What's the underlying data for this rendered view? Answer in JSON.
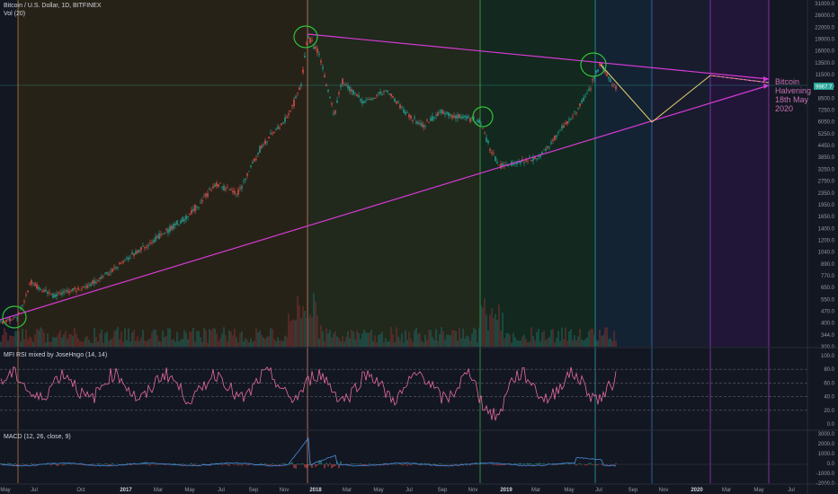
{
  "header": {
    "symbol_title": "Bitcoin / U.S. Dollar, 1D, BITFINEX",
    "volume_title": "Vol (20)"
  },
  "rsi_pane": {
    "title": "MFI RSI mixed by JoseHngo (14, 14)"
  },
  "macd_pane": {
    "title": "MACD (12, 26, close, 9)"
  },
  "annotation": {
    "line1": "Bitcoin",
    "line2": "Halvening",
    "line3": "18th May",
    "line4": "2020"
  },
  "price_label": "9967.7",
  "colors": {
    "background": "#131722",
    "trendline": "#d63ad6",
    "projection": "#e8d26a",
    "circle": "#2ec43a",
    "candle_up": "#26a69a",
    "candle_down": "#ef5350",
    "rsi_line": "#e86ba0",
    "annotation_text": "#c76fb3"
  },
  "price_axis_labels": [
    "31000.0",
    "26000.0",
    "22000.0",
    "19000.0",
    "16000.0",
    "13500.0",
    "11500.0",
    "9800.0",
    "8500.0",
    "7250.0",
    "6050.0",
    "5250.0",
    "4450.0",
    "3850.0",
    "3250.0",
    "2750.0",
    "2350.0",
    "1950.0",
    "1650.0",
    "1400.0",
    "1200.0",
    "1040.0",
    "890.0",
    "770.0",
    "650.0",
    "550.0",
    "470.0",
    "400.0",
    "344.0",
    "300.0"
  ],
  "rsi_axis_labels": [
    "100.0",
    "80.0",
    "60.0",
    "40.0",
    "20.0",
    "0.0"
  ],
  "macd_axis_labels": [
    "3000.0",
    "2000.0",
    "1000.0",
    "0.0",
    "-1000.0",
    "-2000.0"
  ],
  "time_axis_labels": [
    "May",
    "Jul",
    "Oct",
    "2017",
    "Mar",
    "May",
    "Jul",
    "Sep",
    "Nov",
    "2018",
    "Mar",
    "May",
    "Jul",
    "Sep",
    "Nov",
    "2019",
    "Mar",
    "May",
    "Jul",
    "Sep",
    "Nov",
    "2020",
    "Mar",
    "May",
    "Jul"
  ],
  "time_axis_bold": [
    "2017",
    "2018",
    "2019",
    "2020"
  ],
  "session_band_colors": [
    "#2a2416",
    "#232a1c",
    "#142a1e",
    "#152535",
    "#1a1d2f",
    "#24163a"
  ]
}
